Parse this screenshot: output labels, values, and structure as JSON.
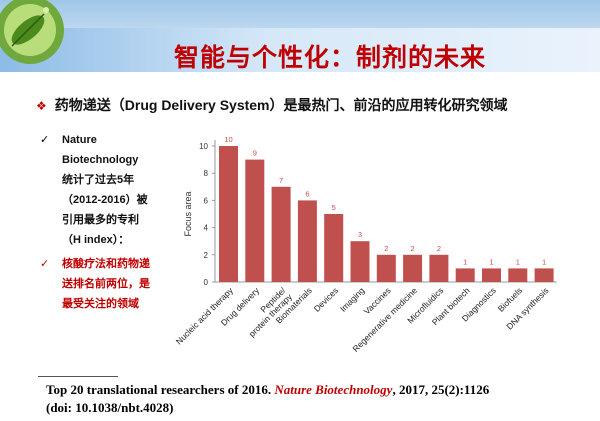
{
  "slide": {
    "title": "智能与个性化：制剂的未来",
    "subtitle": "药物递送（Drug Delivery System）是最热门、前沿的应用转化研究领域",
    "left_items": [
      "Nature Biotechnology 统计了过去5年（2012-2016）被引用最多的专利（H index）：",
      "核酸疗法和药物递送排名前两位，是最受关注的领域"
    ],
    "footer": {
      "text_before": "Top 20 translational researchers of 2016. ",
      "journal": "Nature Biotechnology",
      "text_after": ", 2017, 25(2):1126",
      "doi": "(doi: 10.1038/nbt.4028)"
    },
    "colors": {
      "title": "#c00000",
      "bar": "#c0504d",
      "accent_red": "#c00000"
    }
  },
  "chart_data": {
    "type": "bar",
    "categories": [
      "Nucleic acid therapy",
      "Drug delivery",
      "Peptide/ protein therapy",
      "Biomaterials",
      "Devices",
      "Imaging",
      "Vaccines",
      "Regenerative medicine",
      "Microfluidics",
      "Plant biotech",
      "Diagnostics",
      "Biofuels",
      "DNA synthesis"
    ],
    "values": [
      10,
      9,
      7,
      6,
      5,
      3,
      2,
      2,
      2,
      1,
      1,
      1,
      1
    ],
    "ylabel": "Focus area",
    "ylim": [
      0,
      10
    ],
    "yticks": [
      0,
      2,
      4,
      6,
      8,
      10
    ],
    "grid": false,
    "legend": "none"
  }
}
